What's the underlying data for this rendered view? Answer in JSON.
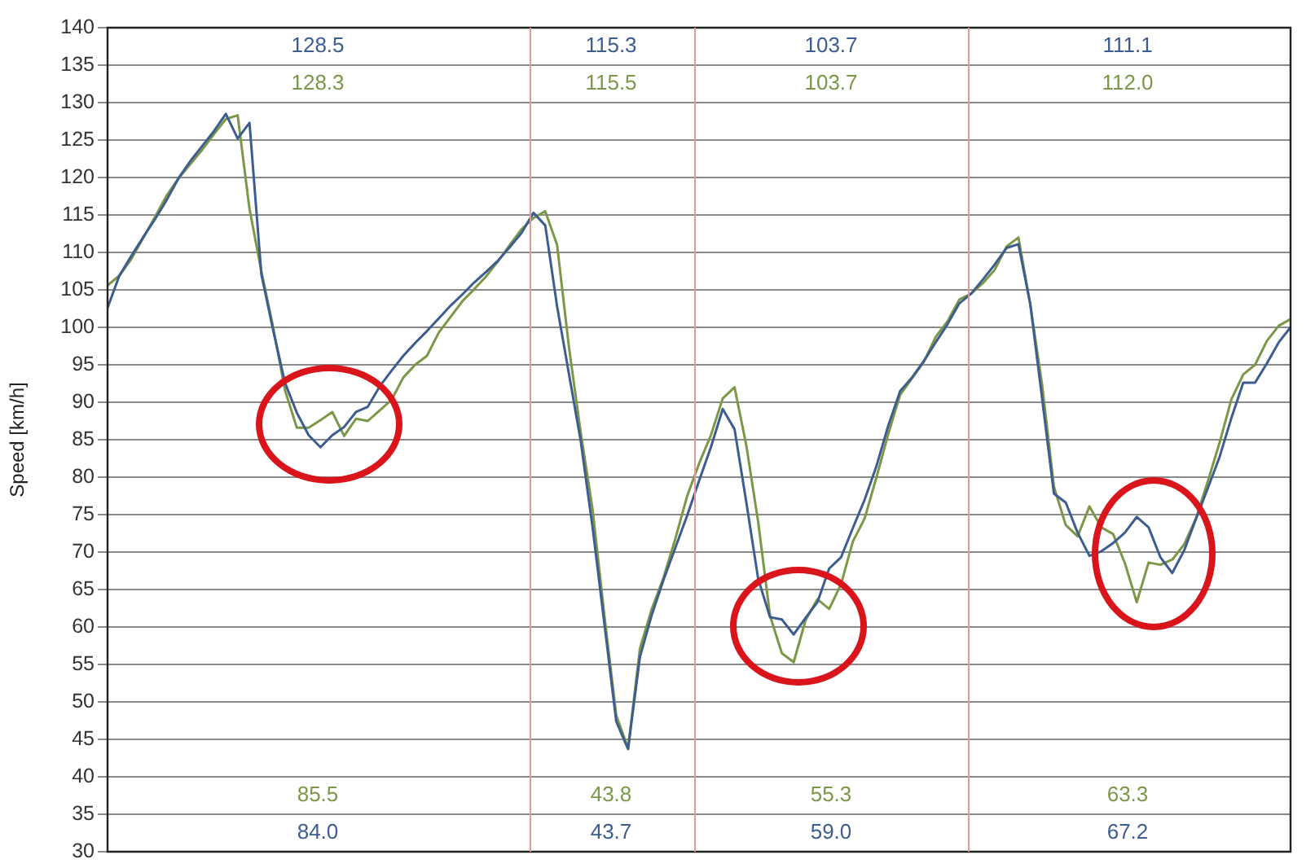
{
  "chart_data": {
    "type": "line",
    "ylabel": "Speed [km/h]",
    "ylim": [
      30,
      140
    ],
    "yticks": [
      30,
      35,
      40,
      45,
      50,
      55,
      60,
      65,
      70,
      75,
      80,
      85,
      90,
      95,
      100,
      105,
      110,
      115,
      120,
      125,
      130,
      135,
      140
    ],
    "tick_labels": "y",
    "grid": "y",
    "legend": false,
    "marker": "none",
    "line_style": "solid",
    "categories": [
      null,
      null,
      null,
      null,
      null,
      null,
      null,
      null,
      null,
      null,
      null,
      null,
      null,
      null,
      null,
      null,
      null,
      null,
      null,
      null,
      null,
      null,
      null,
      null,
      null,
      null,
      null,
      null,
      null,
      null,
      null,
      null,
      null,
      null,
      null,
      null,
      null,
      null,
      null,
      null,
      null,
      null,
      null,
      null,
      null,
      null,
      null,
      null,
      null,
      null,
      null,
      null,
      null,
      null,
      null,
      null,
      null,
      null,
      null,
      null,
      null,
      null,
      null,
      null,
      null,
      null,
      null,
      null,
      null,
      null,
      null,
      null,
      null,
      null,
      null,
      null,
      null,
      null,
      null,
      null,
      null,
      null,
      null,
      null,
      null,
      null,
      null,
      null,
      null,
      null,
      null,
      null,
      null,
      null,
      null,
      null,
      null,
      null,
      null,
      null,
      null
    ],
    "annotations": [
      "128.5",
      "128.3",
      "85.5",
      "84.0",
      "115.3",
      "115.5",
      "43.8",
      "43.7",
      "103.7",
      "103.7",
      "55.3",
      "59.0",
      "111.1",
      "112.0",
      "63.3",
      "67.2"
    ],
    "series": [
      {
        "color": "#3d5d8f",
        "values": [
          102.6,
          106.9,
          109.5,
          112.0,
          114.4,
          117.0,
          119.9,
          122.2,
          124.2,
          126.2,
          128.5,
          125.2,
          127.3,
          107.1,
          99.6,
          92.6,
          88.6,
          85.6,
          84.0,
          85.6,
          86.7,
          88.7,
          89.4,
          92.1,
          94.2,
          96.2,
          97.9,
          99.5,
          101.2,
          102.9,
          104.4,
          106,
          107.4,
          108.9,
          110.7,
          112.6,
          115.3,
          113.6,
          102.8,
          93.8,
          84.8,
          73.3,
          60.4,
          47.4,
          43.7,
          56.0,
          61.6,
          66.3,
          70.6,
          74.9,
          79.5,
          84.0,
          89.1,
          86.4,
          76.6,
          66.4,
          61.3,
          61.0,
          59.0,
          61.2,
          63.3,
          67.8,
          69.3,
          73.2,
          77.0,
          81.5,
          86.9,
          91.5,
          93.3,
          95.5,
          98.0,
          100.4,
          103.2,
          104.5,
          106.4,
          108.4,
          110.6,
          111.1,
          103.1,
          90.5,
          77.8,
          76.6,
          72.6,
          69.5,
          70.1,
          71.2,
          72.6,
          74.7,
          73.3,
          69.3,
          67.2,
          70.2,
          74.4,
          78.5,
          82.7,
          87.9,
          92.6,
          92.6,
          95.2,
          98.0,
          100
        ]
      },
      {
        "color": "#7d9748",
        "values": [
          105.6,
          106.9,
          109.1,
          111.9,
          114.7,
          117.6,
          119.9,
          121.8,
          123.7,
          125.8,
          127.8,
          128.3,
          115.8,
          107.5,
          100,
          91.6,
          86.6,
          86.6,
          87.6,
          88.7,
          85.5,
          87.8,
          87.5,
          88.9,
          90.3,
          93.3,
          95,
          96.2,
          99.3,
          101.4,
          103.5,
          105.1,
          106.8,
          108.8,
          111,
          113.1,
          114.6,
          115.5,
          111,
          97.4,
          85.9,
          75.7,
          61.5,
          48.2,
          43.8,
          57.1,
          62.4,
          66.6,
          71.8,
          77.5,
          81.8,
          85.6,
          90.5,
          92.0,
          84.2,
          74,
          61.5,
          56.5,
          55.3,
          60.9,
          63.7,
          62.4,
          65.7,
          71.4,
          74.5,
          80,
          85.8,
          91,
          93.2,
          95.4,
          98.7,
          100.8,
          103.7,
          104.5,
          105.9,
          107.7,
          110.8,
          112,
          103,
          92.3,
          78.7,
          73.6,
          72.1,
          76.1,
          73.3,
          72.4,
          68.5,
          63.3,
          68.6,
          68.3,
          69.0,
          71,
          74.5,
          79.4,
          84.6,
          90.4,
          93.7,
          95,
          98.2,
          100.2,
          101.1
        ]
      }
    ]
  }
}
